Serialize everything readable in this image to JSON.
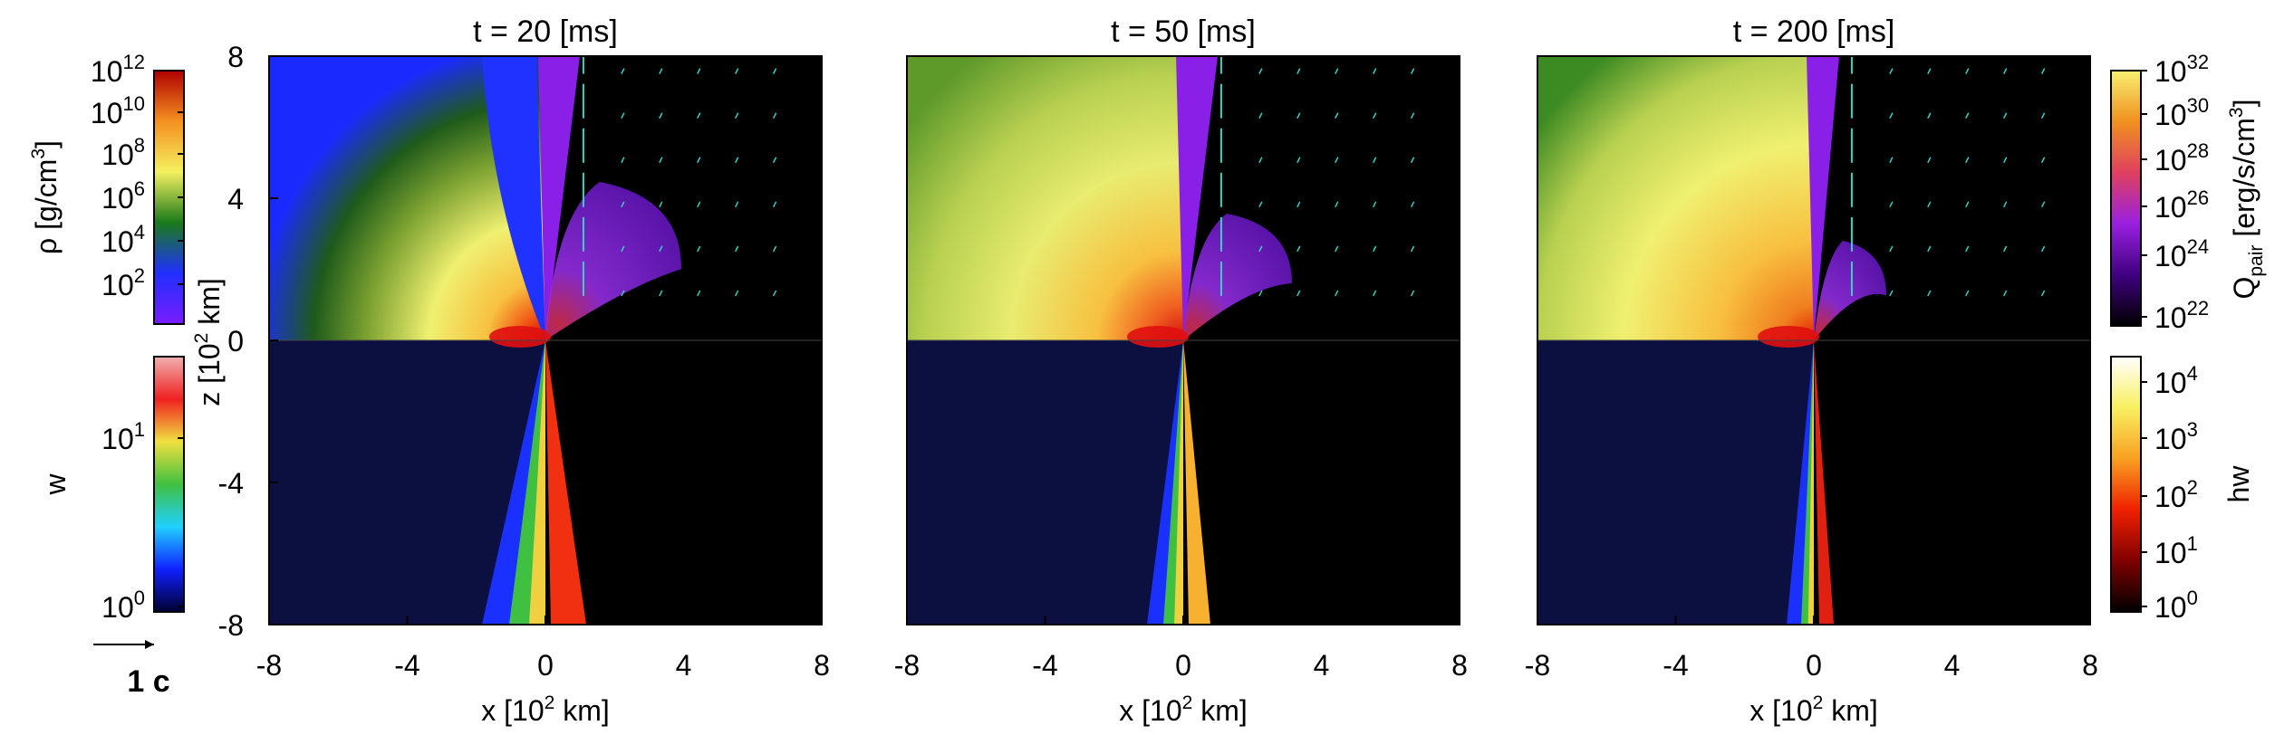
{
  "chart_data": {
    "type": "heatmap",
    "panels": [
      {
        "title": "t = 20 [ms]",
        "time_ms": 20
      },
      {
        "title": "t = 50 [ms]",
        "time_ms": 50
      },
      {
        "title": "t = 200 [ms]",
        "time_ms": 200
      }
    ],
    "xlabel_main": "x [10",
    "xlabel_sup": "2",
    "xlabel_tail": " km]",
    "ylabel_main": "z [10",
    "ylabel_sup": "2",
    "ylabel_tail": " km]",
    "xlim": [
      -8,
      8
    ],
    "ylim": [
      -8,
      8
    ],
    "x_ticks": [
      "-8",
      "-4",
      "0",
      "4",
      "8"
    ],
    "y_ticks": [
      "8",
      "4",
      "0",
      "-4",
      "-8"
    ],
    "colorbars": {
      "rho": {
        "label_main": "ρ [g/cm",
        "label_sup": "3",
        "label_tail": "]",
        "scale": "log",
        "range": [
          10,
          1000000000000
        ],
        "tick_exponents": [
          "12",
          "10",
          "8",
          "6",
          "4",
          "2"
        ],
        "tick_base": "10",
        "colors": [
          "#7a1cff",
          "#2030ff",
          "#1a7a1a",
          "#f4f060",
          "#f49020",
          "#b00000"
        ]
      },
      "w": {
        "label": "w",
        "scale": "log",
        "range": [
          1,
          30
        ],
        "tick_base": "10",
        "tick_exponents": [
          "1",
          "0"
        ],
        "colors": [
          "#000030",
          "#1020ff",
          "#20d0ff",
          "#40c040",
          "#f0e040",
          "#f02020",
          "#f0b0b0"
        ]
      },
      "qpair": {
        "label_main": "Q",
        "label_sub": "pair",
        "label_tail": " [erg/s/cm",
        "label_sup": "3",
        "label_end": "]",
        "scale": "log",
        "range": [
          1e+22,
          1e+32
        ],
        "tick_base": "10",
        "tick_exponents": [
          "32",
          "30",
          "28",
          "26",
          "24",
          "22"
        ],
        "colors": [
          "#000000",
          "#400080",
          "#9a20e0",
          "#e04060",
          "#f09020",
          "#f8f070"
        ]
      },
      "hw": {
        "label": "hw",
        "scale": "log",
        "range": [
          1,
          30000
        ],
        "tick_base": "10",
        "tick_exponents": [
          "4",
          "3",
          "2",
          "1",
          "0"
        ],
        "colors": [
          "#000000",
          "#800000",
          "#f02000",
          "#f8a020",
          "#f8f060",
          "#ffffff"
        ]
      }
    },
    "velocity_reference": "1 c",
    "arrow_color": "#3ad0c8",
    "grid": false
  }
}
